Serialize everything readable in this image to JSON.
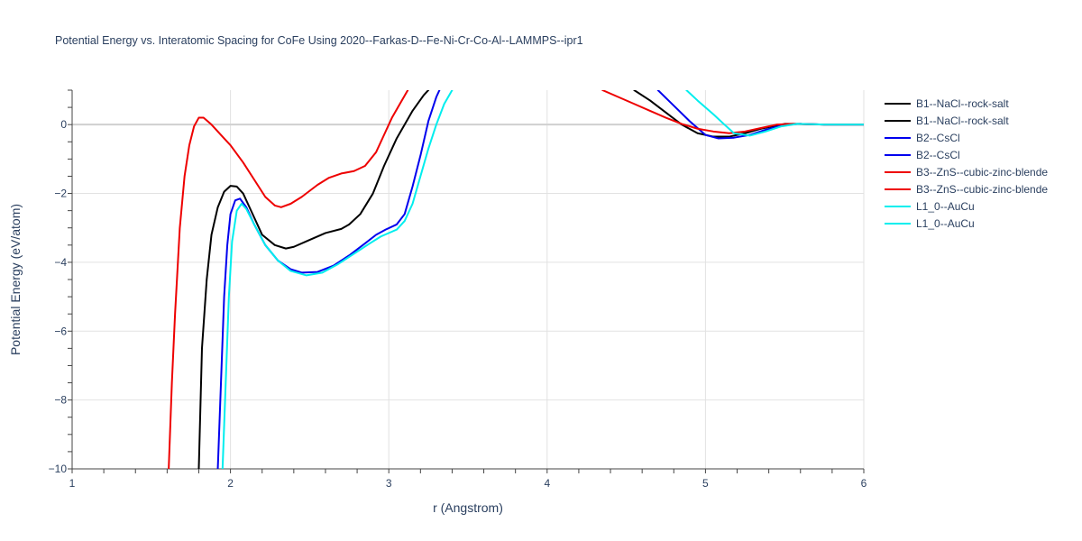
{
  "chart_data": {
    "type": "line",
    "title": "Potential Energy vs. Interatomic Spacing for CoFe Using 2020--Farkas-D--Fe-Ni-Cr-Co-Al--LAMMPS--ipr1",
    "xlabel": "r (Angstrom)",
    "ylabel": "Potential Energy (eV/atom)",
    "xlim": [
      1,
      6
    ],
    "ylim": [
      -10,
      1
    ],
    "x_ticks": [
      1,
      2,
      3,
      4,
      5,
      6
    ],
    "y_ticks": [
      -10,
      -8,
      -6,
      -4,
      -2,
      0
    ],
    "x_tick_labels": [
      "1",
      "2",
      "3",
      "4",
      "5",
      "6"
    ],
    "y_tick_labels": [
      "−10",
      "−8",
      "−6",
      "−4",
      "−2",
      "0"
    ],
    "grid": true,
    "legend_position": "right",
    "series": [
      {
        "name": "B1--NaCl--rock-salt",
        "color": "#000000",
        "points": [
          [
            1.8,
            -10.0
          ],
          [
            1.82,
            -6.5
          ],
          [
            1.85,
            -4.5
          ],
          [
            1.88,
            -3.2
          ],
          [
            1.92,
            -2.4
          ],
          [
            1.96,
            -1.95
          ],
          [
            2.0,
            -1.78
          ],
          [
            2.04,
            -1.8
          ],
          [
            2.08,
            -2.0
          ],
          [
            2.13,
            -2.5
          ],
          [
            2.2,
            -3.2
          ],
          [
            2.28,
            -3.5
          ],
          [
            2.35,
            -3.6
          ],
          [
            2.4,
            -3.55
          ],
          [
            2.5,
            -3.35
          ],
          [
            2.6,
            -3.15
          ],
          [
            2.7,
            -3.03
          ],
          [
            2.75,
            -2.9
          ],
          [
            2.82,
            -2.6
          ],
          [
            2.9,
            -2.0
          ],
          [
            2.97,
            -1.2
          ],
          [
            3.05,
            -0.4
          ],
          [
            3.15,
            0.4
          ],
          [
            3.22,
            0.85
          ],
          [
            3.25,
            1.0
          ]
        ]
      },
      {
        "name": "B1--NaCl--rock-salt",
        "color": "#000000",
        "points": [
          [
            4.55,
            1.0
          ],
          [
            4.65,
            0.7
          ],
          [
            4.75,
            0.35
          ],
          [
            4.85,
            0.0
          ],
          [
            4.95,
            -0.25
          ],
          [
            5.05,
            -0.35
          ],
          [
            5.15,
            -0.35
          ],
          [
            5.25,
            -0.25
          ],
          [
            5.35,
            -0.12
          ],
          [
            5.5,
            0.02
          ],
          [
            5.6,
            0.02
          ],
          [
            5.75,
            0.0
          ],
          [
            6.0,
            0.0
          ]
        ]
      },
      {
        "name": "B2--CsCl",
        "color": "#0000ee",
        "points": [
          [
            1.92,
            -10.0
          ],
          [
            1.94,
            -7.5
          ],
          [
            1.96,
            -5.0
          ],
          [
            1.98,
            -3.5
          ],
          [
            2.0,
            -2.6
          ],
          [
            2.03,
            -2.2
          ],
          [
            2.06,
            -2.15
          ],
          [
            2.1,
            -2.4
          ],
          [
            2.15,
            -2.9
          ],
          [
            2.22,
            -3.5
          ],
          [
            2.3,
            -3.95
          ],
          [
            2.38,
            -4.2
          ],
          [
            2.45,
            -4.3
          ],
          [
            2.55,
            -4.28
          ],
          [
            2.65,
            -4.1
          ],
          [
            2.75,
            -3.8
          ],
          [
            2.85,
            -3.45
          ],
          [
            2.92,
            -3.2
          ],
          [
            2.98,
            -3.05
          ],
          [
            3.05,
            -2.9
          ],
          [
            3.1,
            -2.6
          ],
          [
            3.15,
            -1.8
          ],
          [
            3.2,
            -0.9
          ],
          [
            3.25,
            0.1
          ],
          [
            3.3,
            0.8
          ],
          [
            3.32,
            1.0
          ]
        ]
      },
      {
        "name": "B2--CsCl",
        "color": "#0000ee",
        "points": [
          [
            4.7,
            1.0
          ],
          [
            4.8,
            0.55
          ],
          [
            4.9,
            0.1
          ],
          [
            5.0,
            -0.3
          ],
          [
            5.08,
            -0.4
          ],
          [
            5.18,
            -0.38
          ],
          [
            5.28,
            -0.3
          ],
          [
            5.38,
            -0.15
          ],
          [
            5.5,
            0.0
          ],
          [
            5.6,
            0.02
          ],
          [
            5.75,
            0.0
          ],
          [
            6.0,
            0.0
          ]
        ]
      },
      {
        "name": "B3--ZnS--cubic-zinc-blende",
        "color": "#ee0000",
        "points": [
          [
            1.61,
            -10.0
          ],
          [
            1.63,
            -7.5
          ],
          [
            1.65,
            -5.5
          ],
          [
            1.68,
            -3.0
          ],
          [
            1.71,
            -1.5
          ],
          [
            1.74,
            -0.6
          ],
          [
            1.77,
            -0.05
          ],
          [
            1.8,
            0.2
          ],
          [
            1.83,
            0.2
          ],
          [
            1.88,
            0.0
          ],
          [
            1.94,
            -0.3
          ],
          [
            2.0,
            -0.6
          ],
          [
            2.08,
            -1.1
          ],
          [
            2.15,
            -1.6
          ],
          [
            2.22,
            -2.1
          ],
          [
            2.28,
            -2.35
          ],
          [
            2.32,
            -2.4
          ],
          [
            2.38,
            -2.3
          ],
          [
            2.45,
            -2.1
          ],
          [
            2.55,
            -1.75
          ],
          [
            2.62,
            -1.55
          ],
          [
            2.7,
            -1.42
          ],
          [
            2.78,
            -1.35
          ],
          [
            2.85,
            -1.2
          ],
          [
            2.92,
            -0.8
          ],
          [
            2.97,
            -0.3
          ],
          [
            3.02,
            0.2
          ],
          [
            3.07,
            0.6
          ],
          [
            3.12,
            1.0
          ]
        ]
      },
      {
        "name": "B3--ZnS--cubic-zinc-blende",
        "color": "#ee0000",
        "points": [
          [
            4.35,
            1.0
          ],
          [
            4.45,
            0.8
          ],
          [
            4.55,
            0.6
          ],
          [
            4.65,
            0.4
          ],
          [
            4.75,
            0.2
          ],
          [
            4.85,
            0.02
          ],
          [
            4.95,
            -0.12
          ],
          [
            5.05,
            -0.2
          ],
          [
            5.15,
            -0.25
          ],
          [
            5.25,
            -0.2
          ],
          [
            5.35,
            -0.1
          ],
          [
            5.45,
            0.0
          ],
          [
            5.55,
            0.02
          ],
          [
            5.75,
            0.0
          ],
          [
            6.0,
            0.0
          ]
        ]
      },
      {
        "name": "L1_0--AuCu",
        "color": "#00eeee",
        "points": [
          [
            1.95,
            -10.0
          ],
          [
            1.97,
            -7.5
          ],
          [
            1.99,
            -5.0
          ],
          [
            2.01,
            -3.4
          ],
          [
            2.04,
            -2.5
          ],
          [
            2.07,
            -2.3
          ],
          [
            2.1,
            -2.45
          ],
          [
            2.15,
            -2.9
          ],
          [
            2.22,
            -3.5
          ],
          [
            2.3,
            -3.95
          ],
          [
            2.38,
            -4.25
          ],
          [
            2.48,
            -4.38
          ],
          [
            2.58,
            -4.3
          ],
          [
            2.68,
            -4.05
          ],
          [
            2.78,
            -3.75
          ],
          [
            2.88,
            -3.45
          ],
          [
            2.95,
            -3.25
          ],
          [
            3.05,
            -3.05
          ],
          [
            3.1,
            -2.8
          ],
          [
            3.15,
            -2.3
          ],
          [
            3.2,
            -1.5
          ],
          [
            3.25,
            -0.7
          ],
          [
            3.3,
            0.0
          ],
          [
            3.35,
            0.6
          ],
          [
            3.4,
            1.0
          ]
        ]
      },
      {
        "name": "L1_0--AuCu",
        "color": "#00eeee",
        "points": [
          [
            4.88,
            1.0
          ],
          [
            4.95,
            0.7
          ],
          [
            5.05,
            0.3
          ],
          [
            5.12,
            0.0
          ],
          [
            5.18,
            -0.25
          ],
          [
            5.28,
            -0.32
          ],
          [
            5.38,
            -0.2
          ],
          [
            5.48,
            -0.05
          ],
          [
            5.58,
            0.02
          ],
          [
            5.75,
            0.0
          ],
          [
            6.0,
            0.0
          ]
        ]
      }
    ]
  }
}
